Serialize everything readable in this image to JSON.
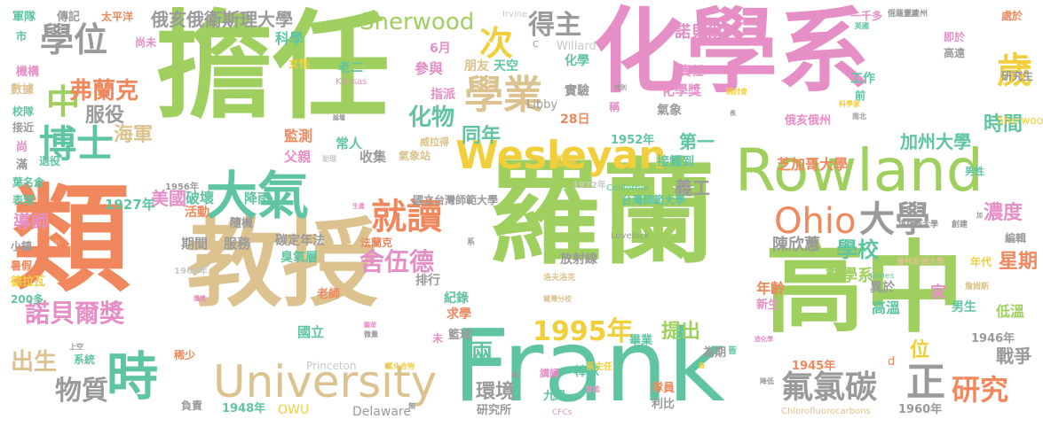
{
  "palette": {
    "green": "#9fcf5e",
    "pink": "#e58fc6",
    "orange": "#f1875c",
    "tan": "#dcc28f",
    "teal": "#5fc5a1",
    "yellow": "#f1cf3c",
    "grey": "#9a9a9a",
    "lightgrey": "#c8c8c8"
  },
  "words": [
    {
      "text": "擔任",
      "color": "green"
    },
    {
      "text": "化學系",
      "color": "pink"
    },
    {
      "text": "類",
      "color": "orange"
    },
    {
      "text": "教授",
      "color": "tan"
    },
    {
      "text": "羅蘭",
      "color": "green"
    },
    {
      "text": "高中",
      "color": "green"
    },
    {
      "text": "Frank",
      "color": "teal"
    },
    {
      "text": "Rowland",
      "color": "green"
    },
    {
      "text": "University",
      "color": "tan"
    },
    {
      "text": "大氣",
      "color": "teal"
    },
    {
      "text": "Wesleyan",
      "color": "yellow"
    },
    {
      "text": "學業",
      "color": "tan"
    },
    {
      "text": "學位",
      "color": "grey"
    },
    {
      "text": "博士",
      "color": "teal"
    },
    {
      "text": "時",
      "color": "teal"
    },
    {
      "text": "Ohio",
      "color": "orange"
    },
    {
      "text": "大學",
      "color": "grey"
    },
    {
      "text": "就讀",
      "color": "orange"
    },
    {
      "text": "Sherwood",
      "color": "green"
    },
    {
      "text": "次",
      "color": "yellow"
    },
    {
      "text": "得主",
      "color": "grey"
    },
    {
      "text": "歲",
      "color": "yellow"
    },
    {
      "text": "中",
      "color": "green"
    },
    {
      "text": "正",
      "color": "grey"
    },
    {
      "text": "氟氯碳",
      "color": "grey"
    },
    {
      "text": "研究",
      "color": "orange"
    },
    {
      "text": "諾貝爾獎",
      "color": "pink"
    },
    {
      "text": "物質",
      "color": "grey"
    },
    {
      "text": "出生",
      "color": "tan"
    },
    {
      "text": "1995年",
      "color": "yellow"
    },
    {
      "text": "舍伍德",
      "color": "pink"
    },
    {
      "text": "弗蘭克",
      "color": "orange"
    },
    {
      "text": "服役",
      "color": "grey"
    },
    {
      "text": "海軍",
      "color": "tan"
    },
    {
      "text": "化物",
      "color": "teal"
    },
    {
      "text": "同年",
      "color": "teal"
    },
    {
      "text": "加州大學",
      "color": "teal"
    },
    {
      "text": "芝加哥大學",
      "color": "orange"
    },
    {
      "text": "時間",
      "color": "teal"
    },
    {
      "text": "濃度",
      "color": "pink"
    },
    {
      "text": "學校",
      "color": "teal"
    },
    {
      "text": "星期",
      "color": "orange"
    },
    {
      "text": "數學系",
      "color": "green"
    },
    {
      "text": "陳欣蕙",
      "color": "grey"
    },
    {
      "text": "提出",
      "color": "green"
    },
    {
      "text": "兩",
      "color": "teal"
    },
    {
      "text": "環境",
      "color": "grey"
    },
    {
      "text": "戰爭",
      "color": "grey"
    },
    {
      "text": "位",
      "color": "yellow"
    },
    {
      "text": "美國",
      "color": "pink"
    },
    {
      "text": "破壞",
      "color": "teal"
    },
    {
      "text": "導師",
      "color": "pink"
    },
    {
      "text": "第一",
      "color": "teal"
    },
    {
      "text": "義工",
      "color": "grey"
    },
    {
      "text": "諾貝爾",
      "color": "pink"
    },
    {
      "text": "俄亥俄衛斯理大學",
      "color": "grey"
    },
    {
      "text": "科學",
      "color": "teal"
    },
    {
      "text": "參與",
      "color": "pink"
    },
    {
      "text": "老二",
      "color": "teal"
    },
    {
      "text": "朋友",
      "color": "tan"
    },
    {
      "text": "天空",
      "color": "teal"
    },
    {
      "text": "化學",
      "color": "teal"
    },
    {
      "text": "實驗",
      "color": "grey"
    },
    {
      "text": "氣象",
      "color": "grey"
    },
    {
      "text": "化學獎",
      "color": "pink"
    },
    {
      "text": "責任",
      "color": "pink"
    },
    {
      "text": "工作",
      "color": "teal"
    },
    {
      "text": "高溫",
      "color": "teal"
    },
    {
      "text": "低溫",
      "color": "green"
    },
    {
      "text": "男生",
      "color": "teal"
    },
    {
      "text": "家",
      "color": "pink"
    },
    {
      "text": "年齡",
      "color": "orange"
    },
    {
      "text": "異於",
      "color": "grey"
    },
    {
      "text": "新生",
      "color": "pink"
    },
    {
      "text": "監測",
      "color": "orange"
    },
    {
      "text": "父親",
      "color": "pink"
    },
    {
      "text": "常人",
      "color": "teal"
    },
    {
      "text": "收集",
      "color": "grey"
    },
    {
      "text": "指派",
      "color": "pink"
    },
    {
      "text": "邀請",
      "color": "yellow"
    },
    {
      "text": "接觸到",
      "color": "teal"
    },
    {
      "text": "國立台灣師範大學",
      "color": "grey"
    },
    {
      "text": "台灣師範大學",
      "color": "teal"
    },
    {
      "text": "放射線",
      "color": "grey"
    },
    {
      "text": "碳定年法",
      "color": "grey"
    },
    {
      "text": "臭氧層",
      "color": "teal"
    },
    {
      "text": "降雨",
      "color": "teal"
    },
    {
      "text": "隨機",
      "color": "grey"
    },
    {
      "text": "服務",
      "color": "grey"
    },
    {
      "text": "期間",
      "color": "grey"
    },
    {
      "text": "活動",
      "color": "orange"
    },
    {
      "text": "1927年",
      "color": "teal"
    },
    {
      "text": "1956年",
      "color": "grey"
    },
    {
      "text": "1964年",
      "color": "lightgrey"
    },
    {
      "text": "1952年",
      "color": "teal"
    },
    {
      "text": "1945年",
      "color": "orange"
    },
    {
      "text": "1946年",
      "color": "grey"
    },
    {
      "text": "1948年",
      "color": "teal"
    },
    {
      "text": "1960年",
      "color": "grey"
    },
    {
      "text": "1972年",
      "color": "lightgrey"
    },
    {
      "text": "28日",
      "color": "orange"
    },
    {
      "text": "6月",
      "color": "pink"
    },
    {
      "text": "九月",
      "color": "teal"
    },
    {
      "text": "法蘭克",
      "color": "orange"
    },
    {
      "text": "排行",
      "color": "grey"
    },
    {
      "text": "紀錄",
      "color": "teal"
    },
    {
      "text": "求學",
      "color": "orange"
    },
    {
      "text": "籃球",
      "color": "grey"
    },
    {
      "text": "國立",
      "color": "teal"
    },
    {
      "text": "棒球",
      "color": "teal"
    },
    {
      "text": "畢業",
      "color": "teal"
    },
    {
      "text": "為期",
      "color": "grey"
    },
    {
      "text": "隊員",
      "color": "orange"
    },
    {
      "text": "利比",
      "color": "grey"
    },
    {
      "text": "研究所",
      "color": "grey"
    },
    {
      "text": "Delaware",
      "color": "grey"
    },
    {
      "text": "OWU",
      "color": "yellow"
    },
    {
      "text": "Princeton",
      "color": "lightgrey"
    },
    {
      "text": "Libby",
      "color": "grey"
    },
    {
      "text": "Willard",
      "color": "lightgrey"
    },
    {
      "text": "Irvine",
      "color": "lightgrey"
    },
    {
      "text": "Kansas",
      "color": "pink"
    },
    {
      "text": "California",
      "color": "teal"
    },
    {
      "text": "Lovelock",
      "color": "grey"
    },
    {
      "text": "James",
      "color": "teal"
    },
    {
      "text": "Chlorofluorocarbons",
      "color": "tan"
    },
    {
      "text": "CFCs",
      "color": "pink"
    },
    {
      "text": "Sherwoo",
      "color": "yellow"
    },
    {
      "text": "d",
      "color": "orange"
    },
    {
      "text": "C",
      "color": "grey"
    },
    {
      "text": "軍隊",
      "color": "teal"
    },
    {
      "text": "傳記",
      "color": "grey"
    },
    {
      "text": "太平洋",
      "color": "orange"
    },
    {
      "text": "市",
      "color": "teal"
    },
    {
      "text": "機構",
      "color": "pink"
    },
    {
      "text": "數據",
      "color": "tan"
    },
    {
      "text": "校隊",
      "color": "teal"
    },
    {
      "text": "接近",
      "color": "grey"
    },
    {
      "text": "尚",
      "color": "pink"
    },
    {
      "text": "滿",
      "color": "grey"
    },
    {
      "text": "退役",
      "color": "teal"
    },
    {
      "text": "葉名倉",
      "color": "teal"
    },
    {
      "text": "表現",
      "color": "teal"
    },
    {
      "text": "小鎮",
      "color": "grey"
    },
    {
      "text": "暑假",
      "color": "orange"
    },
    {
      "text": "德拉瓦",
      "color": "yellow"
    },
    {
      "text": "200多",
      "color": "teal"
    },
    {
      "text": "系統",
      "color": "teal"
    },
    {
      "text": "稀少",
      "color": "orange"
    },
    {
      "text": "負責",
      "color": "grey"
    },
    {
      "text": "尚未",
      "color": "pink"
    },
    {
      "text": "女性",
      "color": "yellow"
    },
    {
      "text": "氣象站",
      "color": "tan"
    },
    {
      "text": "威拉得",
      "color": "tan"
    },
    {
      "text": "老師",
      "color": "orange"
    },
    {
      "text": "未",
      "color": "pink"
    },
    {
      "text": "講師",
      "color": "pink"
    },
    {
      "text": "系主任",
      "color": "yellow"
    },
    {
      "text": "稱",
      "color": "pink"
    },
    {
      "text": "前",
      "color": "teal"
    },
    {
      "text": "研究生",
      "color": "grey"
    },
    {
      "text": "處於",
      "color": "orange"
    },
    {
      "text": "即於",
      "color": "pink"
    },
    {
      "text": "高遠",
      "color": "grey"
    },
    {
      "text": "一千多",
      "color": "pink"
    },
    {
      "text": "俄羅里達州",
      "color": "grey"
    },
    {
      "text": "俄亥俄州",
      "color": "pink"
    },
    {
      "text": "男性",
      "color": "teal"
    },
    {
      "text": "年代",
      "color": "yellow"
    },
    {
      "text": "編輯",
      "color": "grey"
    },
    {
      "text": "普林斯頓大學",
      "color": "tan"
    },
    {
      "text": "堪薩斯大學",
      "color": "grey"
    },
    {
      "text": "創建",
      "color": "grey"
    },
    {
      "text": "詹姆斯",
      "color": "tan"
    },
    {
      "text": "科學家",
      "color": "yellow"
    },
    {
      "text": "研討會",
      "color": "yellow"
    },
    {
      "text": "南北",
      "color": "grey"
    },
    {
      "text": "英國",
      "color": "teal"
    },
    {
      "text": "特別",
      "color": "grey"
    },
    {
      "text": "助理",
      "color": "lightgrey"
    },
    {
      "text": "微量",
      "color": "grey"
    },
    {
      "text": "聽眾",
      "color": "pink"
    },
    {
      "text": "生產",
      "color": "pink"
    },
    {
      "text": "潮濕",
      "color": "grey"
    },
    {
      "text": "系",
      "color": "grey"
    },
    {
      "text": "洛夫洛克",
      "color": "tan"
    },
    {
      "text": "爾灣分校",
      "color": "tan"
    },
    {
      "text": "氯化合物",
      "color": "yellow"
    },
    {
      "text": "極",
      "color": "grey"
    },
    {
      "text": "節能",
      "color": "pink"
    },
    {
      "text": "降低",
      "color": "grey"
    },
    {
      "text": "皆",
      "color": "teal"
    },
    {
      "text": "造化學",
      "color": "pink"
    },
    {
      "text": "香",
      "color": "yellow"
    },
    {
      "text": "上空",
      "color": "grey"
    },
    {
      "text": "無",
      "color": "grey"
    },
    {
      "text": "長",
      "color": "grey"
    },
    {
      "text": "論壇",
      "color": "grey"
    },
    {
      "text": "獲獎",
      "color": "pink"
    },
    {
      "text": "加",
      "color": "grey"
    },
    {
      "text": "小",
      "color": "lightgrey"
    }
  ]
}
